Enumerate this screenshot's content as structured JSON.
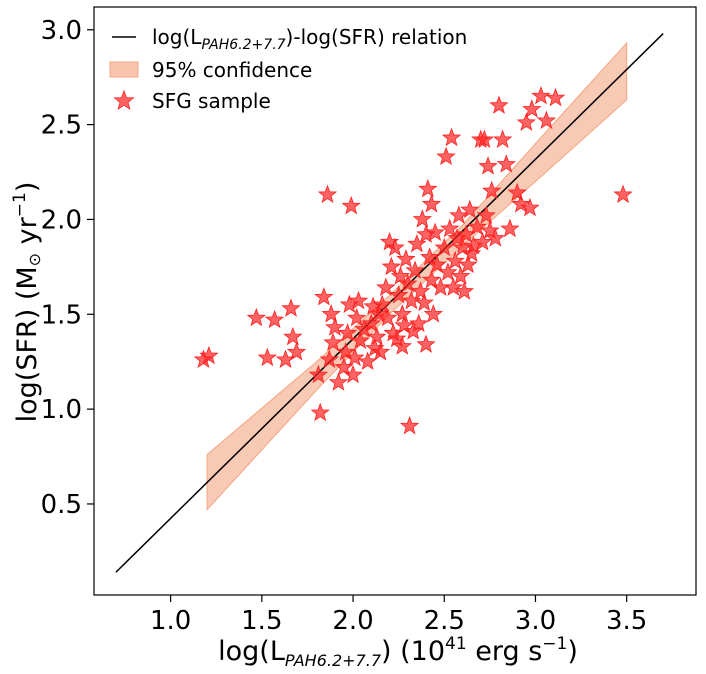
{
  "chart_data": {
    "type": "scatter",
    "xlabel": "log(L",
    "xlabel_sub": "PAH6.2+7.7",
    "xlabel_rest": ") (10",
    "xlabel_sup": "41",
    "xlabel_end": " erg s",
    "xlabel_sup2": "−1",
    "xlabel_close": ")",
    "ylabel": "log(SFR) (M",
    "ylabel_sun": "⊙",
    "ylabel_rest": " yr",
    "ylabel_sup": "−1",
    "ylabel_close": ")",
    "xlim": [
      0.58,
      3.88
    ],
    "ylim": [
      0.02,
      3.12
    ],
    "xticks": [
      1.0,
      1.5,
      2.0,
      2.5,
      3.0,
      3.5
    ],
    "xtick_labels": [
      "1.0",
      "1.5",
      "2.0",
      "2.5",
      "3.0",
      "3.5"
    ],
    "yticks": [
      0.5,
      1.0,
      1.5,
      2.0,
      2.5,
      3.0
    ],
    "ytick_labels": [
      "0.5",
      "1.0",
      "1.5",
      "2.0",
      "2.5",
      "3.0"
    ],
    "relation": {
      "name_prefix": "log(L",
      "name_sub": "PAH6.2+7.7",
      "name_suffix": ")-log(SFR) relation",
      "color": "#000000",
      "x": [
        0.7,
        3.7
      ],
      "y": [
        0.14,
        2.98
      ]
    },
    "confidence": {
      "name": "95% confidence",
      "color": "#f4a582",
      "x": [
        1.2,
        1.8,
        2.2,
        2.6,
        3.0,
        3.5
      ],
      "lower": [
        0.47,
        1.1,
        1.5,
        1.86,
        2.2,
        2.63
      ],
      "upper": [
        0.76,
        1.25,
        1.6,
        1.97,
        2.4,
        2.93
      ]
    },
    "sample": {
      "name": "SFG sample",
      "color": "#ff2020",
      "points": [
        [
          1.18,
          1.26
        ],
        [
          1.21,
          1.28
        ],
        [
          1.47,
          1.48
        ],
        [
          1.53,
          1.27
        ],
        [
          1.57,
          1.47
        ],
        [
          1.63,
          1.26
        ],
        [
          1.66,
          1.53
        ],
        [
          1.69,
          1.3
        ],
        [
          1.67,
          1.38
        ],
        [
          1.81,
          1.18
        ],
        [
          1.82,
          0.98
        ],
        [
          1.84,
          1.59
        ],
        [
          1.86,
          2.13
        ],
        [
          1.87,
          1.26
        ],
        [
          1.88,
          1.5
        ],
        [
          1.89,
          1.35
        ],
        [
          1.9,
          1.43
        ],
        [
          1.92,
          1.14
        ],
        [
          1.95,
          1.22
        ],
        [
          1.96,
          1.3
        ],
        [
          1.97,
          1.4
        ],
        [
          1.98,
          1.55
        ],
        [
          1.99,
          2.07
        ],
        [
          2.0,
          1.18
        ],
        [
          2.01,
          1.27
        ],
        [
          2.02,
          1.48
        ],
        [
          2.03,
          1.57
        ],
        [
          2.04,
          1.36
        ],
        [
          2.06,
          1.42
        ],
        [
          2.08,
          1.25
        ],
        [
          2.1,
          1.45
        ],
        [
          2.11,
          1.54
        ],
        [
          2.12,
          1.32
        ],
        [
          2.13,
          1.38
        ],
        [
          2.14,
          1.5
        ],
        [
          2.15,
          1.3
        ],
        [
          2.16,
          1.55
        ],
        [
          2.18,
          1.64
        ],
        [
          2.19,
          1.48
        ],
        [
          2.2,
          1.88
        ],
        [
          2.21,
          1.75
        ],
        [
          2.22,
          1.4
        ],
        [
          2.23,
          1.85
        ],
        [
          2.24,
          1.37
        ],
        [
          2.25,
          1.6
        ],
        [
          2.26,
          1.7
        ],
        [
          2.27,
          1.33
        ],
        [
          2.27,
          1.5
        ],
        [
          2.28,
          1.44
        ],
        [
          2.29,
          1.79
        ],
        [
          2.3,
          1.66
        ],
        [
          2.31,
          0.91
        ],
        [
          2.32,
          1.57
        ],
        [
          2.33,
          1.41
        ],
        [
          2.34,
          1.73
        ],
        [
          2.35,
          1.87
        ],
        [
          2.36,
          1.45
        ],
        [
          2.37,
          1.62
        ],
        [
          2.38,
          2.0
        ],
        [
          2.39,
          1.56
        ],
        [
          2.4,
          1.34
        ],
        [
          2.4,
          1.92
        ],
        [
          2.41,
          2.16
        ],
        [
          2.42,
          1.8
        ],
        [
          2.43,
          2.08
        ],
        [
          2.43,
          1.68
        ],
        [
          2.44,
          1.5
        ],
        [
          2.45,
          1.93
        ],
        [
          2.46,
          1.76
        ],
        [
          2.48,
          1.64
        ],
        [
          2.5,
          1.85
        ],
        [
          2.51,
          2.33
        ],
        [
          2.52,
          1.72
        ],
        [
          2.53,
          1.95
        ],
        [
          2.54,
          2.43
        ],
        [
          2.55,
          1.64
        ],
        [
          2.56,
          1.78
        ],
        [
          2.57,
          1.9
        ],
        [
          2.58,
          2.02
        ],
        [
          2.59,
          1.7
        ],
        [
          2.6,
          1.85
        ],
        [
          2.61,
          1.62
        ],
        [
          2.62,
          1.92
        ],
        [
          2.63,
          1.76
        ],
        [
          2.64,
          2.05
        ],
        [
          2.65,
          1.82
        ],
        [
          2.66,
          1.86
        ],
        [
          2.68,
          1.96
        ],
        [
          2.7,
          2.42
        ],
        [
          2.71,
          1.88
        ],
        [
          2.72,
          2.42
        ],
        [
          2.73,
          2.02
        ],
        [
          2.74,
          2.28
        ],
        [
          2.75,
          1.94
        ],
        [
          2.76,
          2.15
        ],
        [
          2.78,
          1.9
        ],
        [
          2.8,
          2.6
        ],
        [
          2.82,
          2.42
        ],
        [
          2.84,
          2.29
        ],
        [
          2.86,
          1.95
        ],
        [
          2.9,
          2.14
        ],
        [
          2.92,
          2.08
        ],
        [
          2.95,
          2.51
        ],
        [
          2.97,
          2.06
        ],
        [
          2.98,
          2.58
        ],
        [
          3.03,
          2.65
        ],
        [
          3.06,
          2.52
        ],
        [
          3.11,
          2.64
        ],
        [
          3.48,
          2.13
        ]
      ]
    },
    "legend_position": "upper-left"
  }
}
